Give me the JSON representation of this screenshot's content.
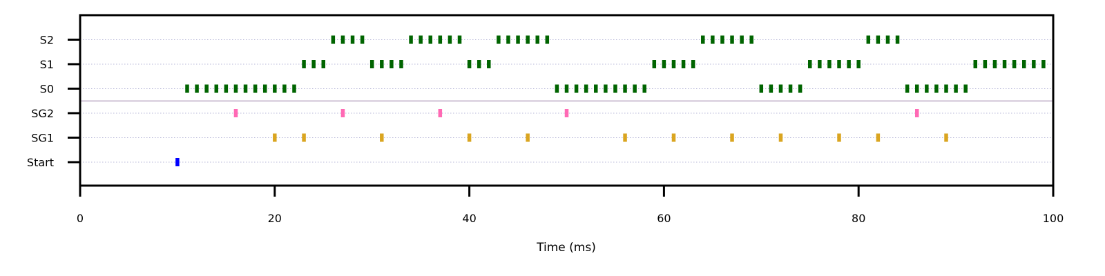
{
  "chart_data": {
    "type": "scatter",
    "title": "",
    "xlabel": "Time (ms)",
    "ylabel": "",
    "xlim": [
      0,
      100
    ],
    "xticks": [
      0,
      20,
      40,
      60,
      80,
      100
    ],
    "categories": [
      "Start",
      "SG1",
      "SG2",
      "S0",
      "S1",
      "S2"
    ],
    "grid": "horizontal dotted lines per row",
    "separator_between": [
      "SG2",
      "S0"
    ],
    "series": [
      {
        "category": "Start",
        "color": "#0000ff",
        "x": [
          10
        ]
      },
      {
        "category": "SG1",
        "color": "#daa520",
        "x": [
          20,
          23,
          31,
          40,
          46,
          56,
          61,
          67,
          72,
          78,
          82,
          89
        ]
      },
      {
        "category": "SG2",
        "color": "#ff69b4",
        "x": [
          16,
          27,
          37,
          50,
          86
        ]
      },
      {
        "category": "S0",
        "color": "#006400",
        "x": [
          11,
          12,
          13,
          14,
          15,
          16,
          17,
          18,
          19,
          20,
          21,
          22,
          49,
          50,
          51,
          52,
          53,
          54,
          55,
          56,
          57,
          58,
          70,
          71,
          72,
          73,
          74,
          85,
          86,
          87,
          88,
          89,
          90,
          91
        ]
      },
      {
        "category": "S1",
        "color": "#006400",
        "x": [
          23,
          24,
          25,
          30,
          31,
          32,
          33,
          40,
          41,
          42,
          59,
          60,
          61,
          62,
          63,
          75,
          76,
          77,
          78,
          79,
          80,
          92,
          93,
          94,
          95,
          96,
          97,
          98,
          99
        ]
      },
      {
        "category": "S2",
        "color": "#006400",
        "x": [
          26,
          27,
          28,
          29,
          34,
          35,
          36,
          37,
          38,
          39,
          43,
          44,
          45,
          46,
          47,
          48,
          64,
          65,
          66,
          67,
          68,
          69,
          81,
          82,
          83,
          84
        ]
      }
    ]
  }
}
